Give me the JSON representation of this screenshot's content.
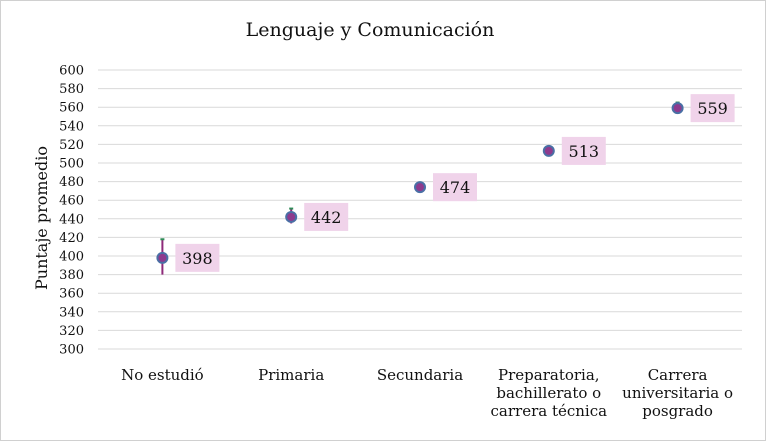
{
  "chart_data": {
    "type": "scatter",
    "title": "Lenguaje y Comunicación",
    "ylabel": "Puntaje promedio",
    "xlabel": "",
    "ylim": [
      300,
      600
    ],
    "yticks": [
      300,
      320,
      340,
      360,
      380,
      400,
      420,
      440,
      460,
      480,
      500,
      520,
      540,
      560,
      580,
      600
    ],
    "grid": true,
    "categories": [
      [
        "No estudió"
      ],
      [
        "Primaria"
      ],
      [
        "Secundaria"
      ],
      [
        "Preparatoria,",
        "bachillerato o",
        "carrera técnica"
      ],
      [
        "Carrera",
        "universitaria o",
        "posgrado"
      ]
    ],
    "values": [
      398,
      442,
      474,
      513,
      559
    ],
    "data_labels": [
      "398",
      "442",
      "474",
      "513",
      "559"
    ],
    "error_bars": [
      [
        380,
        418
      ],
      [
        435,
        451
      ],
      [
        470,
        477
      ],
      [
        509,
        516
      ],
      [
        553,
        565
      ]
    ],
    "colors": {
      "marker_fill": "#8e3a8e",
      "marker_edge": "#4a6fa5",
      "errorbar": "#8e2a7a",
      "errorbar_cap": "#2e8b57",
      "label_bg": "#f0d3ea",
      "grid": "#d9d9d9"
    }
  }
}
